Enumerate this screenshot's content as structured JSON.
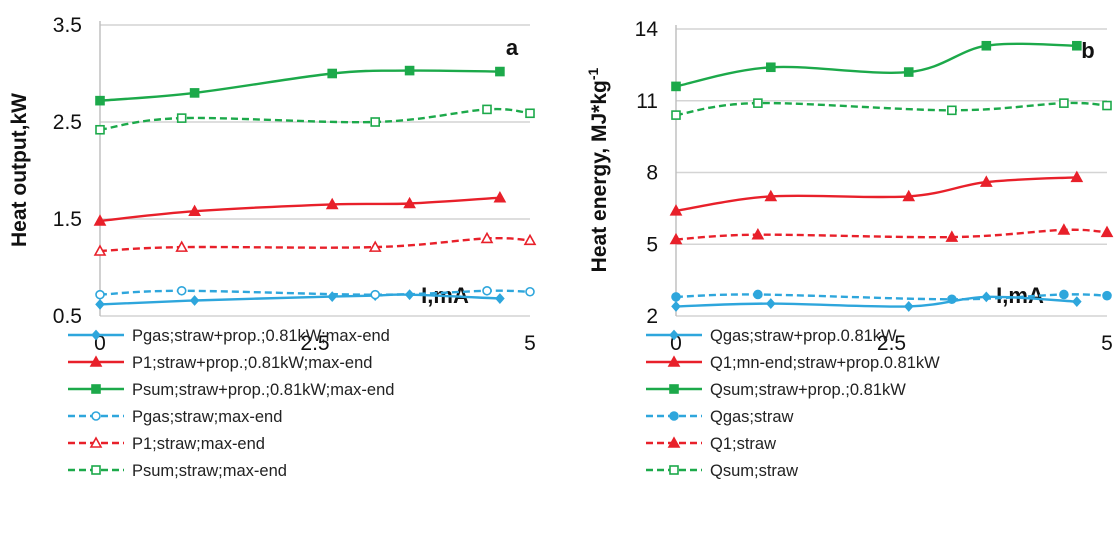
{
  "chart_data": [
    {
      "type": "line",
      "panel_label": "a",
      "ylabel": "Heat output,kW",
      "xlabel": "I,mA",
      "xlim": [
        0,
        5
      ],
      "ylim": [
        0.5,
        3.5
      ],
      "x_ticks": [
        "0",
        "2.5",
        "5"
      ],
      "y_ticks": [
        "0.5",
        "1.5",
        "2.5",
        "3.5"
      ],
      "grid": "horizontal",
      "legend_position": "bottom",
      "series": [
        {
          "name": "Pgas;straw+prop.;0.81kW;max-end",
          "color": "#2ea6dc",
          "dash": false,
          "marker": "diamond",
          "filled": true,
          "x": [
            0,
            1.1,
            2.7,
            3.2,
            3.6,
            4.65
          ],
          "y": [
            0.62,
            0.66,
            0.7,
            0.71,
            0.72,
            0.68
          ]
        },
        {
          "name": "P1;straw+prop.;0.81kW;max-end",
          "color": "#e8202a",
          "dash": false,
          "marker": "triangle",
          "filled": true,
          "x": [
            0,
            1.1,
            2.7,
            3.6,
            4.65
          ],
          "y": [
            1.48,
            1.58,
            1.65,
            1.66,
            1.72
          ]
        },
        {
          "name": "Psum;straw+prop.;0.81kW;max-end",
          "color": "#1ca94a",
          "dash": false,
          "marker": "square",
          "filled": true,
          "x": [
            0,
            1.1,
            2.7,
            3.6,
            4.65
          ],
          "y": [
            2.72,
            2.8,
            3.0,
            3.03,
            3.02
          ]
        },
        {
          "name": "Pgas;straw;max-end",
          "color": "#2ea6dc",
          "dash": true,
          "marker": "circle",
          "filled": false,
          "x": [
            0,
            0.95,
            3.2,
            4.5,
            5
          ],
          "y": [
            0.72,
            0.76,
            0.72,
            0.76,
            0.75
          ]
        },
        {
          "name": "P1;straw;max-end",
          "color": "#e8202a",
          "dash": true,
          "marker": "triangle",
          "filled": false,
          "x": [
            0,
            0.95,
            3.2,
            4.5,
            5
          ],
          "y": [
            1.17,
            1.21,
            1.21,
            1.3,
            1.28
          ]
        },
        {
          "name": "Psum;straw;max-end",
          "color": "#1ca94a",
          "dash": true,
          "marker": "square",
          "filled": false,
          "x": [
            0,
            0.95,
            3.2,
            4.5,
            5
          ],
          "y": [
            2.42,
            2.54,
            2.5,
            2.63,
            2.59
          ]
        }
      ]
    },
    {
      "type": "line",
      "panel_label": "b",
      "ylabel": "Heat energy, MJ*kg",
      "ylabel_sup": "-1",
      "xlabel": "I,mA",
      "xlim": [
        0,
        5
      ],
      "ylim": [
        2,
        14
      ],
      "x_ticks": [
        "0",
        "2.5",
        "5"
      ],
      "y_ticks": [
        "2",
        "5",
        "8",
        "11",
        "14"
      ],
      "grid": "horizontal",
      "legend_position": "bottom",
      "series": [
        {
          "name": "Qgas;straw+prop.0.81kW",
          "color": "#2ea6dc",
          "dash": false,
          "marker": "diamond",
          "filled": true,
          "x": [
            0,
            1.1,
            2.7,
            3.6,
            4.65
          ],
          "y": [
            2.4,
            2.52,
            2.4,
            2.8,
            2.6
          ]
        },
        {
          "name": "Q1;mn-end;straw+prop.0.81kW",
          "color": "#e8202a",
          "dash": false,
          "marker": "triangle",
          "filled": true,
          "x": [
            0,
            1.1,
            2.7,
            3.6,
            4.65
          ],
          "y": [
            6.4,
            7.0,
            7.0,
            7.6,
            7.8
          ]
        },
        {
          "name": "Qsum;straw+prop.;0.81kW",
          "color": "#1ca94a",
          "dash": false,
          "marker": "square",
          "filled": true,
          "x": [
            0,
            1.1,
            2.7,
            3.6,
            4.65
          ],
          "y": [
            11.6,
            12.4,
            12.2,
            13.3,
            13.3
          ]
        },
        {
          "name": "Qgas;straw",
          "color": "#2ea6dc",
          "dash": true,
          "marker": "circle",
          "filled": true,
          "x": [
            0,
            0.95,
            3.2,
            4.5,
            5
          ],
          "y": [
            2.8,
            2.9,
            2.7,
            2.9,
            2.85
          ]
        },
        {
          "name": "Q1;straw",
          "color": "#e8202a",
          "dash": true,
          "marker": "triangle",
          "filled": true,
          "x": [
            0,
            0.95,
            3.2,
            4.5,
            5
          ],
          "y": [
            5.2,
            5.4,
            5.3,
            5.6,
            5.5
          ]
        },
        {
          "name": "Qsum;straw",
          "color": "#1ca94a",
          "dash": true,
          "marker": "square",
          "filled": false,
          "x": [
            0,
            0.95,
            3.2,
            4.5,
            5
          ],
          "y": [
            10.4,
            10.9,
            10.6,
            10.9,
            10.8
          ]
        }
      ]
    }
  ]
}
